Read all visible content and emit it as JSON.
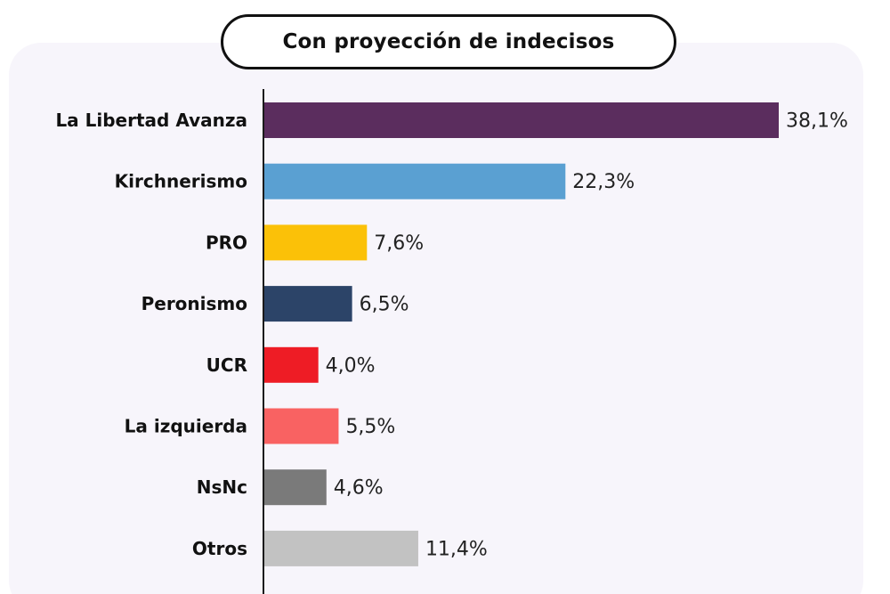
{
  "chart_data": {
    "type": "bar",
    "orientation": "horizontal",
    "title": "Con proyección de indecisos",
    "xlabel": "",
    "ylabel": "",
    "xlim": [
      0,
      38.1
    ],
    "grid": false,
    "categories": [
      "La Libertad Avanza",
      "Kirchnerismo",
      "PRO",
      "Peronismo",
      "UCR",
      "La izquierda",
      "NsNc",
      "Otros"
    ],
    "values": [
      38.1,
      22.3,
      7.6,
      6.5,
      4.0,
      5.5,
      4.6,
      11.4
    ],
    "value_labels": [
      "38,1%",
      "22,3%",
      "7,6%",
      "6,5%",
      "4,0%",
      "5,5%",
      "4,6%",
      "11,4%"
    ],
    "colors": [
      "#5b2d5e",
      "#5aa0d2",
      "#fbc108",
      "#2c4468",
      "#ee1c25",
      "#f96262",
      "#7a7a7a",
      "#c2c2c2"
    ]
  }
}
